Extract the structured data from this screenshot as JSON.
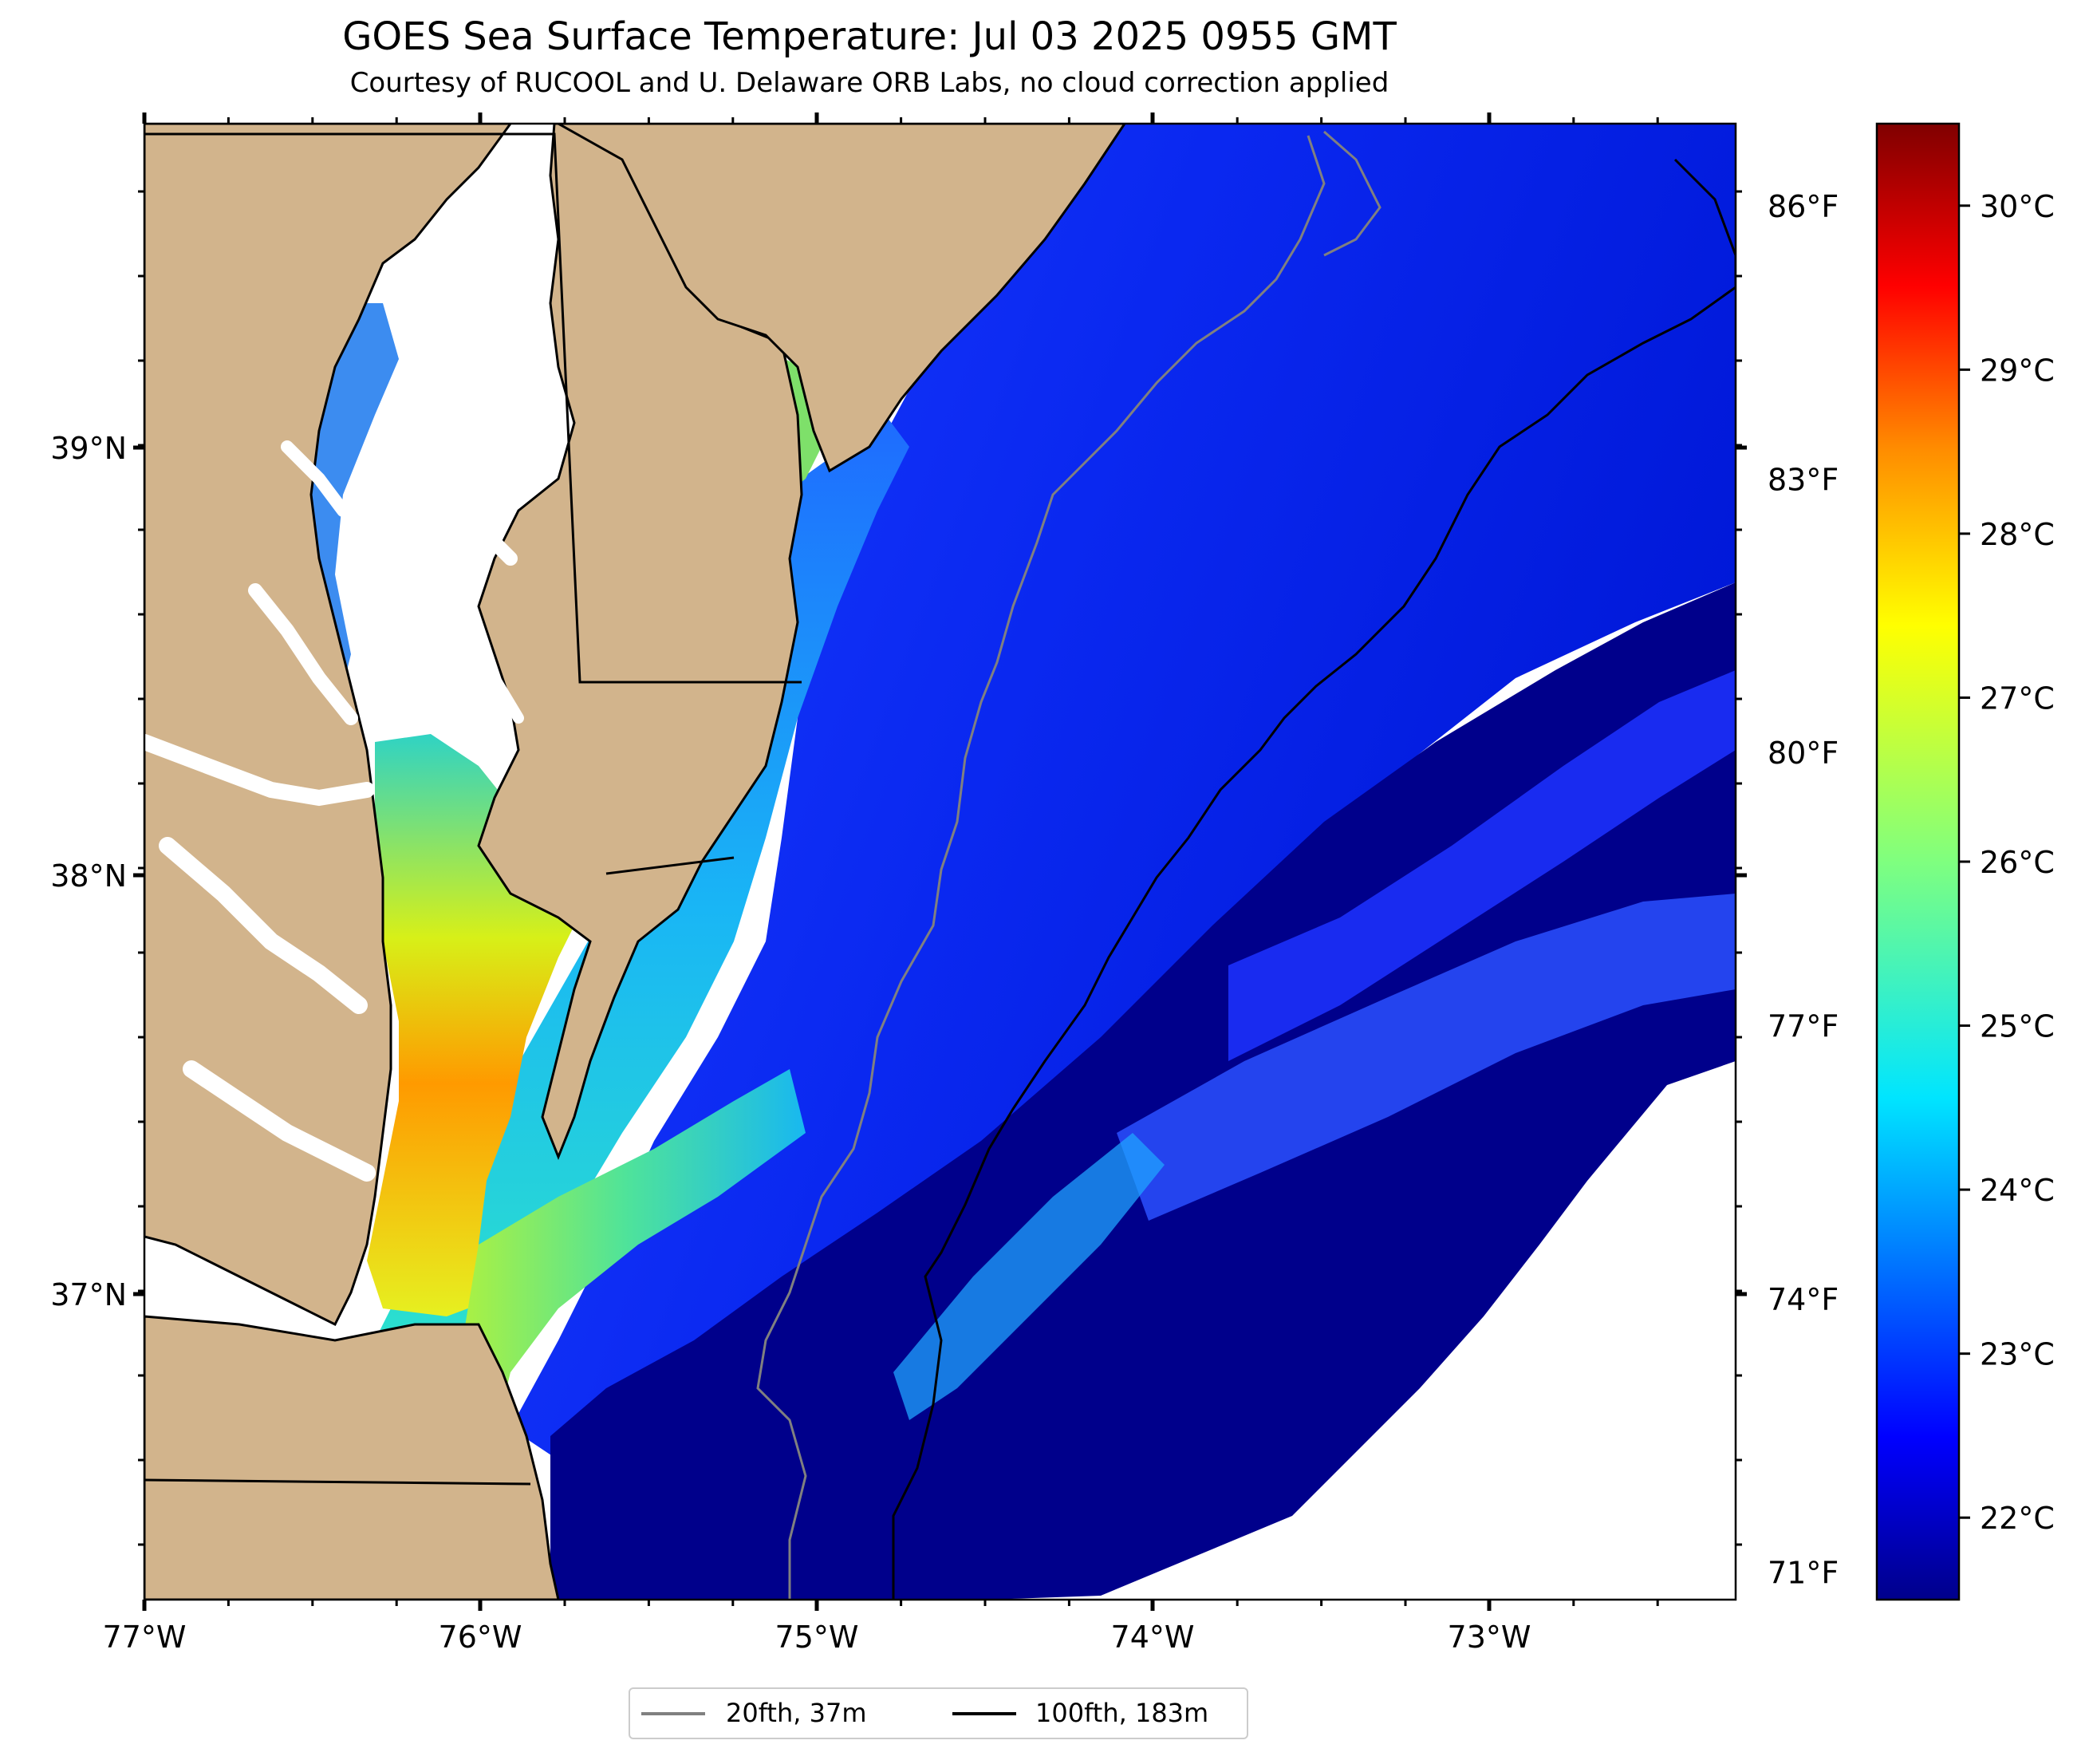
{
  "title": "GOES Sea Surface Temperature: Jul 03 2025 0955 GMT",
  "subtitle": "Courtesy of RUCOOL and U. Delaware ORB Labs, no cloud correction applied",
  "axes": {
    "longitude_labels": [
      "77°W",
      "76°W",
      "75°W",
      "74°W",
      "73°W"
    ],
    "latitude_labels": [
      "39°N",
      "38°N",
      "37°N"
    ]
  },
  "fahrenheit_labels": [
    "86°F",
    "83°F",
    "80°F",
    "77°F",
    "74°F",
    "71°F"
  ],
  "colorbar": {
    "labels": [
      "30°C",
      "29°C",
      "28°C",
      "27°C",
      "26°C",
      "25°C",
      "24°C",
      "23°C",
      "22°C"
    ],
    "min_c": 21.5,
    "max_c": 30.5,
    "colormap": "jet"
  },
  "legend": {
    "items": [
      {
        "label": "20fth, 37m",
        "color": "#808080"
      },
      {
        "label": "100fth, 183m",
        "color": "#000000"
      }
    ]
  },
  "colors": {
    "land": "#d2b48c",
    "ocean_cool": "#00008b",
    "nearshore_warm": "#ffa500"
  }
}
